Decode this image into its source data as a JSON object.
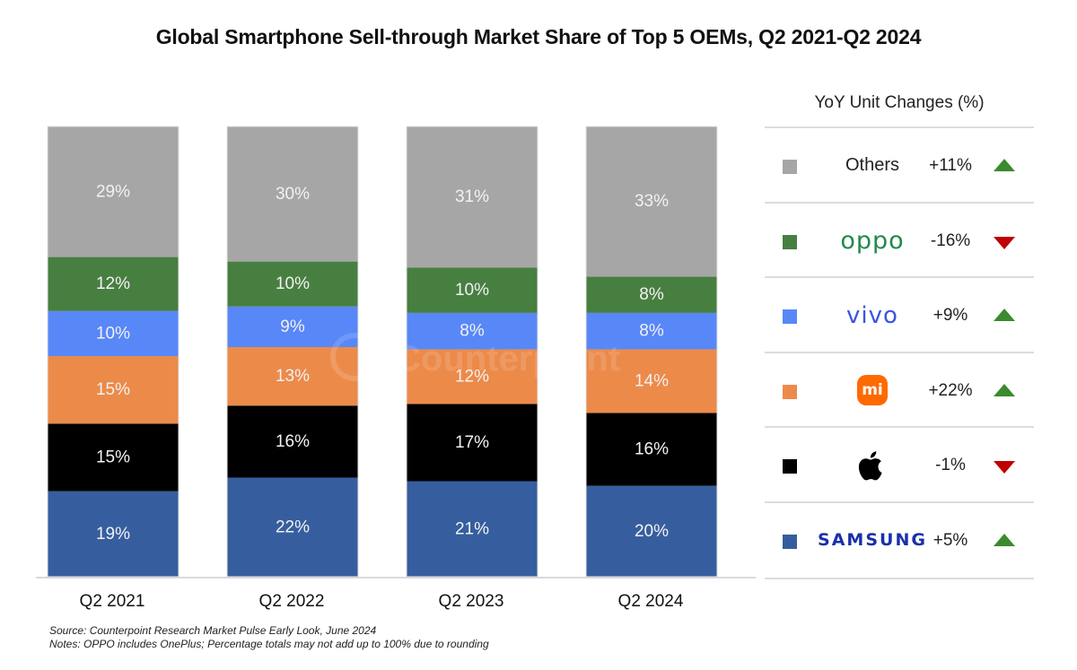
{
  "chart_data": {
    "type": "bar",
    "stacked": true,
    "title": "Global Smartphone Sell-through Market Share of Top 5 OEMs, Q2 2021-Q2 2024",
    "xlabel": "",
    "ylabel": "",
    "categories": [
      "Q2 2021",
      "Q2 2022",
      "Q2 2023",
      "Q2 2024"
    ],
    "series": [
      {
        "name": "Samsung",
        "color": "#365e9f",
        "values": [
          19,
          22,
          21,
          20
        ],
        "labels": [
          "19%",
          "22%",
          "21%",
          "20%"
        ]
      },
      {
        "name": "Apple",
        "color": "#000000",
        "values": [
          15,
          16,
          17,
          16
        ],
        "labels": [
          "15%",
          "16%",
          "17%",
          "16%"
        ]
      },
      {
        "name": "Xiaomi",
        "color": "#ec8a4a",
        "values": [
          15,
          13,
          12,
          14
        ],
        "labels": [
          "15%",
          "13%",
          "12%",
          "14%"
        ]
      },
      {
        "name": "vivo",
        "color": "#5887f8",
        "values": [
          10,
          9,
          8,
          8
        ],
        "labels": [
          "10%",
          "9%",
          "8%",
          "8%"
        ]
      },
      {
        "name": "OPPO",
        "color": "#477f41",
        "values": [
          12,
          10,
          10,
          8
        ],
        "labels": [
          "12%",
          "10%",
          "10%",
          "8%"
        ]
      },
      {
        "name": "Others",
        "color": "#a6a6a6",
        "values": [
          29,
          30,
          31,
          33
        ],
        "labels": [
          "29%",
          "30%",
          "31%",
          "33%"
        ]
      }
    ],
    "grid": false,
    "legend": "right",
    "watermark": "Counterpoint"
  },
  "legend_panel": {
    "title": "YoY Unit Changes (%)",
    "rows": [
      {
        "brand": "Others",
        "brand_icon": "text",
        "color": "#a6a6a6",
        "change": "+11%",
        "direction": "up"
      },
      {
        "brand": "oppo",
        "brand_icon": "oppo-logo",
        "color": "#477f41",
        "change": "-16%",
        "direction": "down"
      },
      {
        "brand": "vivo",
        "brand_icon": "vivo-logo",
        "color": "#5887f8",
        "change": "+9%",
        "direction": "up"
      },
      {
        "brand": "mi",
        "brand_icon": "xiaomi-logo",
        "color": "#ec8a4a",
        "change": "+22%",
        "direction": "up"
      },
      {
        "brand": "",
        "brand_icon": "apple-logo",
        "color": "#000000",
        "change": "-1%",
        "direction": "down"
      },
      {
        "brand": "SAMSUNG",
        "brand_icon": "samsung-logo",
        "color": "#365e9f",
        "change": "+5%",
        "direction": "up"
      }
    ],
    "arrow_colors": {
      "up": "#3c8a2e",
      "down": "#c00000"
    }
  },
  "footnotes": {
    "source": "Source: Counterpoint Research Market Pulse Early Look, June 2024",
    "notes": "Notes: OPPO includes OnePlus; Percentage totals may not add up to 100% due to rounding"
  }
}
